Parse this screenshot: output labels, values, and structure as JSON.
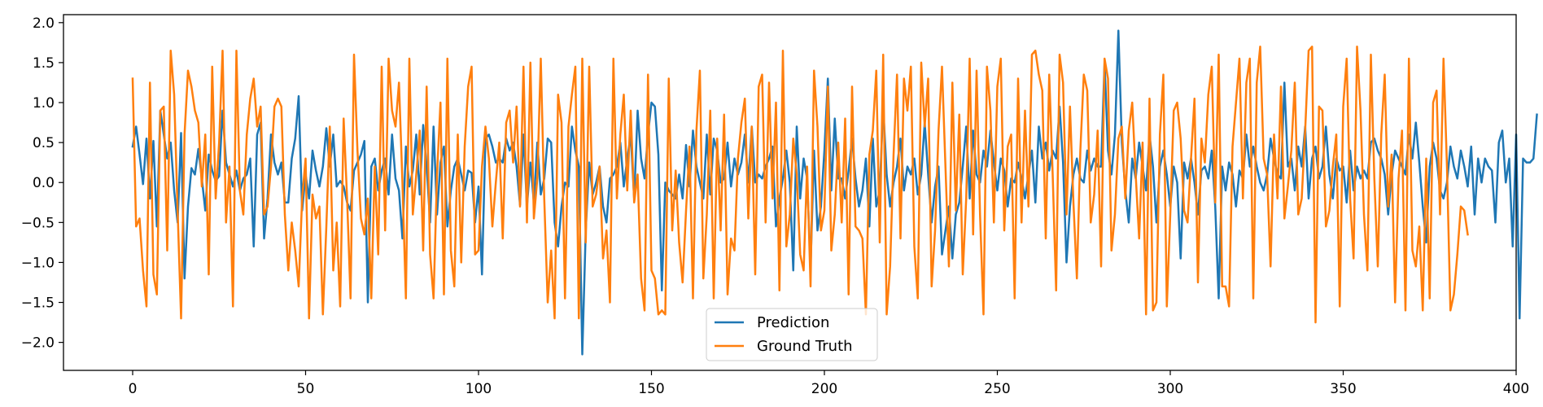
{
  "chart_data": {
    "type": "line",
    "title": "",
    "xlabel": "",
    "ylabel": "",
    "xlim": [
      -20,
      400
    ],
    "ylim": [
      -2.35,
      2.1
    ],
    "x_ticks": [
      0,
      50,
      100,
      150,
      200,
      250,
      300,
      350,
      400
    ],
    "x_tick_labels": [
      "0",
      "50",
      "100",
      "150",
      "200",
      "250",
      "300",
      "350",
      "400"
    ],
    "y_ticks": [
      -2.0,
      -1.5,
      -1.0,
      -0.5,
      0.0,
      0.5,
      1.0,
      1.5,
      2.0
    ],
    "y_tick_labels": [
      "−2.0",
      "−1.5",
      "−1.0",
      "−0.5",
      "0.0",
      "0.5",
      "1.0",
      "1.5",
      "2.0"
    ],
    "grid": false,
    "legend_position": "lower-center",
    "series": [
      {
        "name": "Prediction",
        "color": "#1f77b4",
        "x_start": 0,
        "x_step": 1,
        "values": [
          0.45,
          0.7,
          0.35,
          -0.02,
          0.55,
          -0.2,
          0.52,
          -0.55,
          0.9,
          0.6,
          0.3,
          0.5,
          -0.1,
          -0.5,
          0.62,
          -1.2,
          -0.3,
          0.18,
          0.1,
          0.42,
          0.05,
          -0.35,
          0.35,
          0.15,
          0.02,
          0.08,
          0.9,
          0.25,
          0.1,
          -0.05,
          0.15,
          -0.1,
          0.05,
          0.1,
          0.3,
          -0.8,
          0.6,
          0.75,
          -0.7,
          -0.2,
          0.6,
          0.25,
          0.1,
          0.25,
          -0.25,
          -0.25,
          0.3,
          0.55,
          1.08,
          -0.35,
          0.1,
          -0.2,
          0.4,
          0.15,
          -0.05,
          0.2,
          0.68,
          0.2,
          0.6,
          -0.05,
          0.02,
          -0.05,
          -0.25,
          -0.35,
          0.15,
          0.25,
          0.35,
          0.52,
          -1.5,
          0.2,
          0.3,
          -0.1,
          0.15,
          0.3,
          -0.15,
          0.6,
          0.05,
          -0.1,
          -0.7,
          0.45,
          -0.05,
          0.15,
          0.6,
          -0.15,
          0.72,
          0.2,
          -0.5,
          0.7,
          -0.4,
          0.25,
          0.45,
          -0.55,
          -0.1,
          0.2,
          0.3,
          0.1,
          -0.1,
          0.15,
          0.12,
          -0.5,
          -0.05,
          -1.15,
          0.55,
          0.6,
          0.45,
          0.25,
          0.3,
          0.25,
          0.55,
          0.4,
          0.5,
          0.2,
          -0.28,
          0.6,
          -0.3,
          0.25,
          -0.25,
          0.5,
          -0.15,
          0.05,
          0.55,
          0.5,
          -0.5,
          -0.8,
          -0.3,
          0.0,
          -0.05,
          0.7,
          0.4,
          0.2,
          -2.15,
          -0.6,
          0.25,
          -0.15,
          0.0,
          0.2,
          -0.3,
          -0.5,
          0.05,
          0.1,
          0.2,
          0.5,
          -0.05,
          0.3,
          0.6,
          -0.2,
          0.9,
          0.3,
          0.05,
          0.6,
          1.0,
          0.95,
          0.35,
          -1.35,
          0.0,
          -0.1,
          -0.15,
          -0.2,
          0.1,
          -0.2,
          0.47,
          -0.05,
          0.65,
          0.2,
          0.0,
          -0.2,
          0.6,
          -0.15,
          0.55,
          0.4,
          0.0,
          0.05,
          0.5,
          -0.05,
          0.3,
          0.1,
          0.25,
          0.6,
          0.0,
          0.7,
          0.0,
          0.1,
          0.05,
          0.2,
          0.3,
          0.45,
          -0.55,
          -0.2,
          0.05,
          0.4,
          0.0,
          -1.1,
          0.7,
          -0.2,
          0.3,
          0.05,
          -1.05,
          0.4,
          -0.6,
          -0.3,
          0.4,
          1.3,
          -0.1,
          0.8,
          0.05,
          0.05,
          -0.2,
          0.15,
          0.55,
          0.05,
          -0.3,
          -0.1,
          0.3,
          -0.55,
          0.55,
          -0.3,
          -0.1,
          0.95,
          0.1,
          -0.3,
          0.0,
          0.2,
          0.55,
          -0.1,
          0.2,
          0.1,
          0.3,
          -0.15,
          0.1,
          0.75,
          0.1,
          -0.5,
          -0.05,
          0.2,
          -0.9,
          -0.6,
          -0.3,
          -0.95,
          -0.4,
          -0.25,
          0.2,
          0.7,
          -0.2,
          0.65,
          0.1,
          0.0,
          0.4,
          0.2,
          0.65,
          0.25,
          -0.1,
          0.3,
          0.15,
          -0.3,
          0.05,
          0.0,
          0.25,
          0.05,
          -0.2,
          0.1,
          0.4,
          -0.25,
          0.7,
          0.3,
          0.5,
          0.15,
          0.4,
          0.3,
          0.95,
          0.25,
          -1.0,
          -0.3,
          0.1,
          0.3,
          0.05,
          0.0,
          0.4,
          0.15,
          0.3,
          0.2,
          0.2,
          1.5,
          0.4,
          0.1,
          0.6,
          1.9,
          0.5,
          -0.1,
          -0.5,
          0.3,
          0.05,
          0.5,
          0.2,
          -0.1,
          0.6,
          0.2,
          -0.5,
          0.2,
          0.4,
          0.1,
          -0.3,
          0.2,
          0.0,
          -0.95,
          0.25,
          0.05,
          0.3,
          0.0,
          -0.4,
          0.15,
          0.2,
          0.05,
          0.4,
          -0.3,
          -1.45,
          0.2,
          -0.1,
          0.25,
          0.1,
          -0.3,
          0.15,
          0.05,
          0.6,
          0.2,
          0.45,
          0.2,
          0.0,
          -0.1,
          0.1,
          0.55,
          0.3,
          0.1,
          0.05,
          1.25,
          0.2,
          0.3,
          -0.1,
          0.45,
          0.2,
          0.7,
          -0.2,
          0.3,
          0.45,
          0.05,
          0.2,
          0.7,
          0.1,
          -0.2,
          0.3,
          0.15,
          0.2,
          -0.25,
          0.4,
          -0.1,
          0.2,
          0.05,
          0.15,
          0.05,
          0.5,
          0.55,
          0.4,
          0.3,
          0.1,
          -0.4,
          0.1,
          0.4,
          0.3,
          0.2,
          0.1,
          0.6,
          0.3,
          0.75,
          0.25,
          -0.3,
          -0.75,
          0.2,
          0.5,
          0.3,
          -0.1,
          -0.2,
          0.0,
          0.45,
          0.2,
          0.05,
          0.4,
          0.2,
          -0.05,
          0.45,
          -0.4,
          0.3,
          0.0,
          0.3,
          0.2,
          0.15,
          -0.5,
          0.5,
          0.65,
          0.0,
          0.3,
          -0.8,
          0.6,
          -1.7,
          0.3,
          0.25,
          0.25,
          0.3,
          0.85
        ]
      },
      {
        "name": "Ground Truth",
        "color": "#ff7f0e",
        "x_start": 0,
        "x_step": 1,
        "values": [
          1.3,
          -0.55,
          -0.45,
          -1.1,
          -1.55,
          1.25,
          -1.15,
          -1.4,
          0.9,
          0.95,
          -0.85,
          1.65,
          1.1,
          -0.35,
          -1.7,
          0.6,
          1.4,
          1.2,
          0.9,
          0.75,
          -0.05,
          0.6,
          -1.15,
          1.45,
          -0.2,
          0.5,
          1.65,
          -0.5,
          0.2,
          -1.55,
          1.65,
          -0.1,
          -0.4,
          0.6,
          1.05,
          1.3,
          0.7,
          0.95,
          -0.4,
          -0.3,
          0.2,
          0.95,
          1.05,
          0.95,
          -0.4,
          -1.1,
          -0.5,
          -0.85,
          -1.3,
          -0.2,
          0.3,
          -1.7,
          -0.15,
          -0.45,
          -0.3,
          -1.65,
          -0.55,
          0.7,
          -1.1,
          -0.5,
          -1.55,
          0.8,
          -0.2,
          -1.45,
          1.6,
          0.4,
          -0.45,
          -0.65,
          -0.2,
          -1.45,
          0.2,
          -0.9,
          1.45,
          -0.6,
          1.55,
          0.9,
          0.7,
          1.25,
          0.0,
          -1.45,
          1.55,
          -0.4,
          0.1,
          0.65,
          -0.85,
          1.2,
          -0.9,
          -1.45,
          0.1,
          1.0,
          -1.4,
          1.55,
          -0.85,
          -1.3,
          0.6,
          -1.0,
          0.45,
          1.2,
          1.45,
          -0.9,
          -0.85,
          0.2,
          0.7,
          0.3,
          -0.55,
          0.0,
          0.5,
          -0.7,
          0.75,
          0.9,
          0.25,
          0.95,
          -0.3,
          1.45,
          -0.5,
          1.5,
          -0.45,
          0.05,
          1.55,
          -0.2,
          -1.5,
          -0.85,
          -1.7,
          1.1,
          0.75,
          -1.45,
          0.7,
          1.1,
          1.45,
          -1.7,
          1.55,
          -0.75,
          1.45,
          -0.3,
          -0.15,
          0.2,
          -0.95,
          -0.6,
          -1.5,
          1.55,
          -0.2,
          0.6,
          1.1,
          -0.1,
          0.9,
          -0.25,
          0.1,
          -1.2,
          -1.6,
          1.35,
          -1.1,
          -1.2,
          -1.65,
          -1.6,
          -1.65,
          1.3,
          -0.6,
          0.15,
          -0.75,
          -1.25,
          -0.35,
          0.45,
          -1.45,
          0.65,
          1.4,
          -1.2,
          -0.4,
          0.9,
          -1.45,
          0.55,
          -0.6,
          0.85,
          -1.4,
          -0.7,
          -0.85,
          0.3,
          0.75,
          1.05,
          -0.45,
          0.7,
          -1.15,
          1.2,
          1.35,
          -0.5,
          1.25,
          -0.2,
          1.0,
          -1.35,
          1.65,
          -0.8,
          -0.4,
          0.55,
          0.1,
          -0.9,
          -1.1,
          0.2,
          -1.3,
          1.4,
          0.7,
          -0.6,
          -0.35,
          1.2,
          -0.85,
          -0.4,
          0.5,
          -0.5,
          0.8,
          -1.4,
          1.2,
          -0.55,
          -0.6,
          -0.7,
          -1.65,
          0.35,
          0.65,
          1.4,
          -0.75,
          1.6,
          -1.65,
          -1.05,
          0.35,
          1.35,
          -0.7,
          1.3,
          0.9,
          1.45,
          -0.8,
          -1.45,
          1.5,
          0.7,
          1.3,
          -1.3,
          -0.6,
          0.65,
          1.45,
          0.2,
          -1.05,
          1.25,
          -0.35,
          0.85,
          -1.15,
          -0.2,
          1.55,
          -0.65,
          1.4,
          -0.4,
          -1.65,
          1.45,
          0.9,
          -0.5,
          1.2,
          1.55,
          -0.6,
          0.45,
          0.6,
          -1.45,
          1.3,
          -0.5,
          0.9,
          -0.3,
          1.6,
          1.65,
          1.35,
          1.15,
          -0.7,
          1.35,
          0.1,
          -1.35,
          1.6,
          1.25,
          -0.4,
          0.95,
          -0.25,
          -1.2,
          0.4,
          1.35,
          1.15,
          -0.5,
          -0.15,
          0.65,
          -1.05,
          1.55,
          1.3,
          -0.85,
          -0.4,
          0.55,
          0.7,
          -0.2,
          0.65,
          1.0,
          0.1,
          -0.7,
          0.5,
          -1.65,
          1.05,
          -1.6,
          -1.5,
          0.6,
          1.35,
          -1.55,
          -0.4,
          0.9,
          1.0,
          0.55,
          -0.35,
          -0.5,
          0.3,
          1.05,
          -1.25,
          0.55,
          0.25,
          1.1,
          1.45,
          -0.25,
          1.6,
          -1.3,
          -1.3,
          -1.55,
          0.45,
          1.0,
          1.55,
          -0.2,
          1.25,
          1.55,
          -1.45,
          1.25,
          1.7,
          0.3,
          0.1,
          -1.05,
          0.6,
          -0.2,
          1.2,
          -0.45,
          -0.05,
          0.4,
          1.25,
          -0.4,
          -0.2,
          0.65,
          1.65,
          1.7,
          -1.75,
          0.95,
          0.9,
          -0.55,
          -0.35,
          0.2,
          0.6,
          -1.55,
          0.95,
          1.55,
          -0.2,
          -0.95,
          1.7,
          0.9,
          -0.4,
          -1.1,
          1.6,
          0.05,
          -1.05,
          0.6,
          1.35,
          -0.3,
          0.35,
          -1.5,
          0.05,
          0.65,
          -1.6,
          1.55,
          -0.85,
          -1.05,
          -0.55,
          -1.6,
          0.3,
          -1.45,
          1.0,
          1.15,
          -0.4,
          1.55,
          0.2,
          -1.6,
          -1.4,
          -0.9,
          -0.3,
          -0.35,
          -0.65
        ]
      }
    ]
  }
}
